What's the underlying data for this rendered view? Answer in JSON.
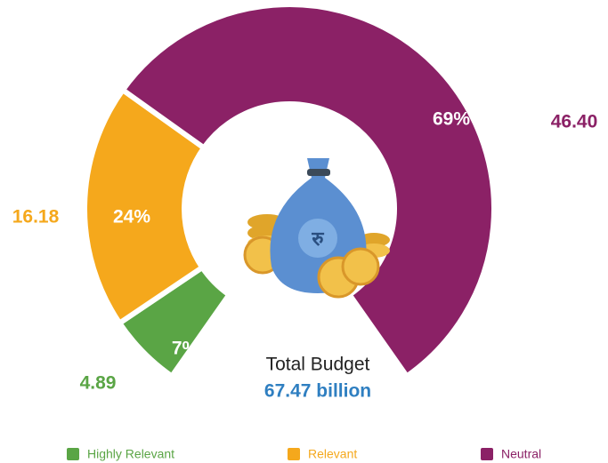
{
  "chart_data": {
    "type": "gauge",
    "categories": [
      "Highly Relevant",
      "Relevant",
      "Neutral"
    ],
    "colors": [
      "#5aa545",
      "#f5a81c",
      "#8b2166"
    ],
    "values": [
      4.89,
      16.18,
      46.4
    ],
    "value_labels": [
      "4.89",
      "16.18",
      "46.40"
    ],
    "shares": [
      7,
      24,
      69
    ],
    "share_labels": [
      "7%",
      "24%",
      "69%"
    ],
    "center_label": "Total Budget",
    "center_value_label": "67.47 billion"
  }
}
